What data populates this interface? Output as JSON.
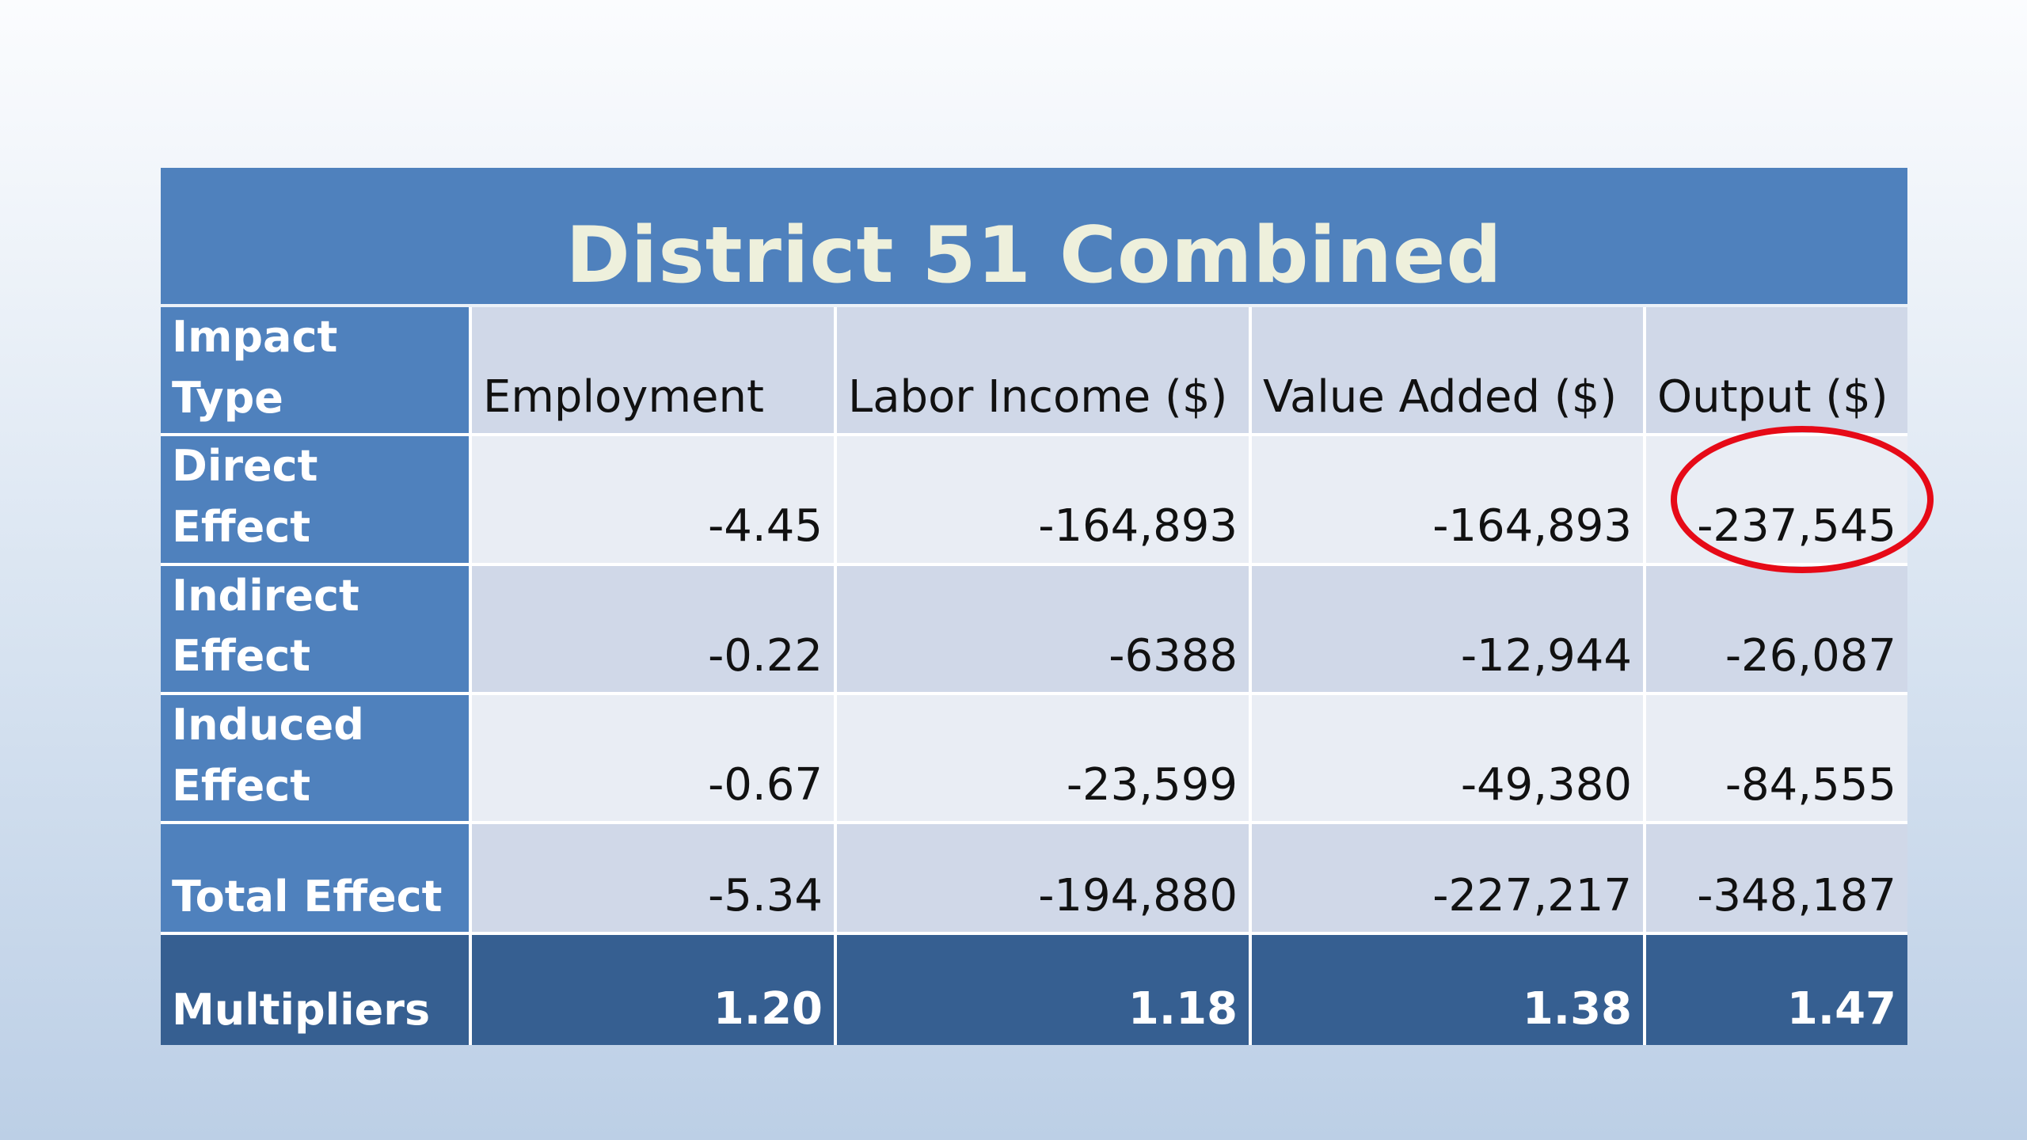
{
  "title": "District 51 Combined",
  "table": {
    "headers": [
      "Impact Type",
      "Employment",
      "Labor Income ($)",
      "Value Added ($)",
      "Output ($)"
    ],
    "rows": [
      {
        "label": "Direct Effect",
        "employment": "-4.45",
        "labor_income": "-164,893",
        "value_added": "-164,893",
        "output": "-237,545"
      },
      {
        "label": "Indirect Effect",
        "employment": "-0.22",
        "labor_income": "-6388",
        "value_added": "-12,944",
        "output": "-26,087"
      },
      {
        "label": "Induced Effect",
        "employment": "-0.67",
        "labor_income": "-23,599",
        "value_added": "-49,380",
        "output": "-84,555"
      },
      {
        "label": "Total Effect",
        "employment": "-5.34",
        "labor_income": "-194,880",
        "value_added": "-227,217",
        "output": "-348,187"
      },
      {
        "label": "Multipliers",
        "employment": "1.20",
        "labor_income": "1.18",
        "value_added": "1.38",
        "output": "1.47"
      }
    ]
  },
  "highlight": {
    "value": "-237,545",
    "color": "#e60a17"
  },
  "colors": {
    "title_bar": "#4f81bd",
    "label_column": "#4f81bd",
    "multipliers_row": "#365f91",
    "band_dark": "#d0d8e8",
    "band_light": "#e9edf4",
    "title_text": "#eef0dc"
  }
}
